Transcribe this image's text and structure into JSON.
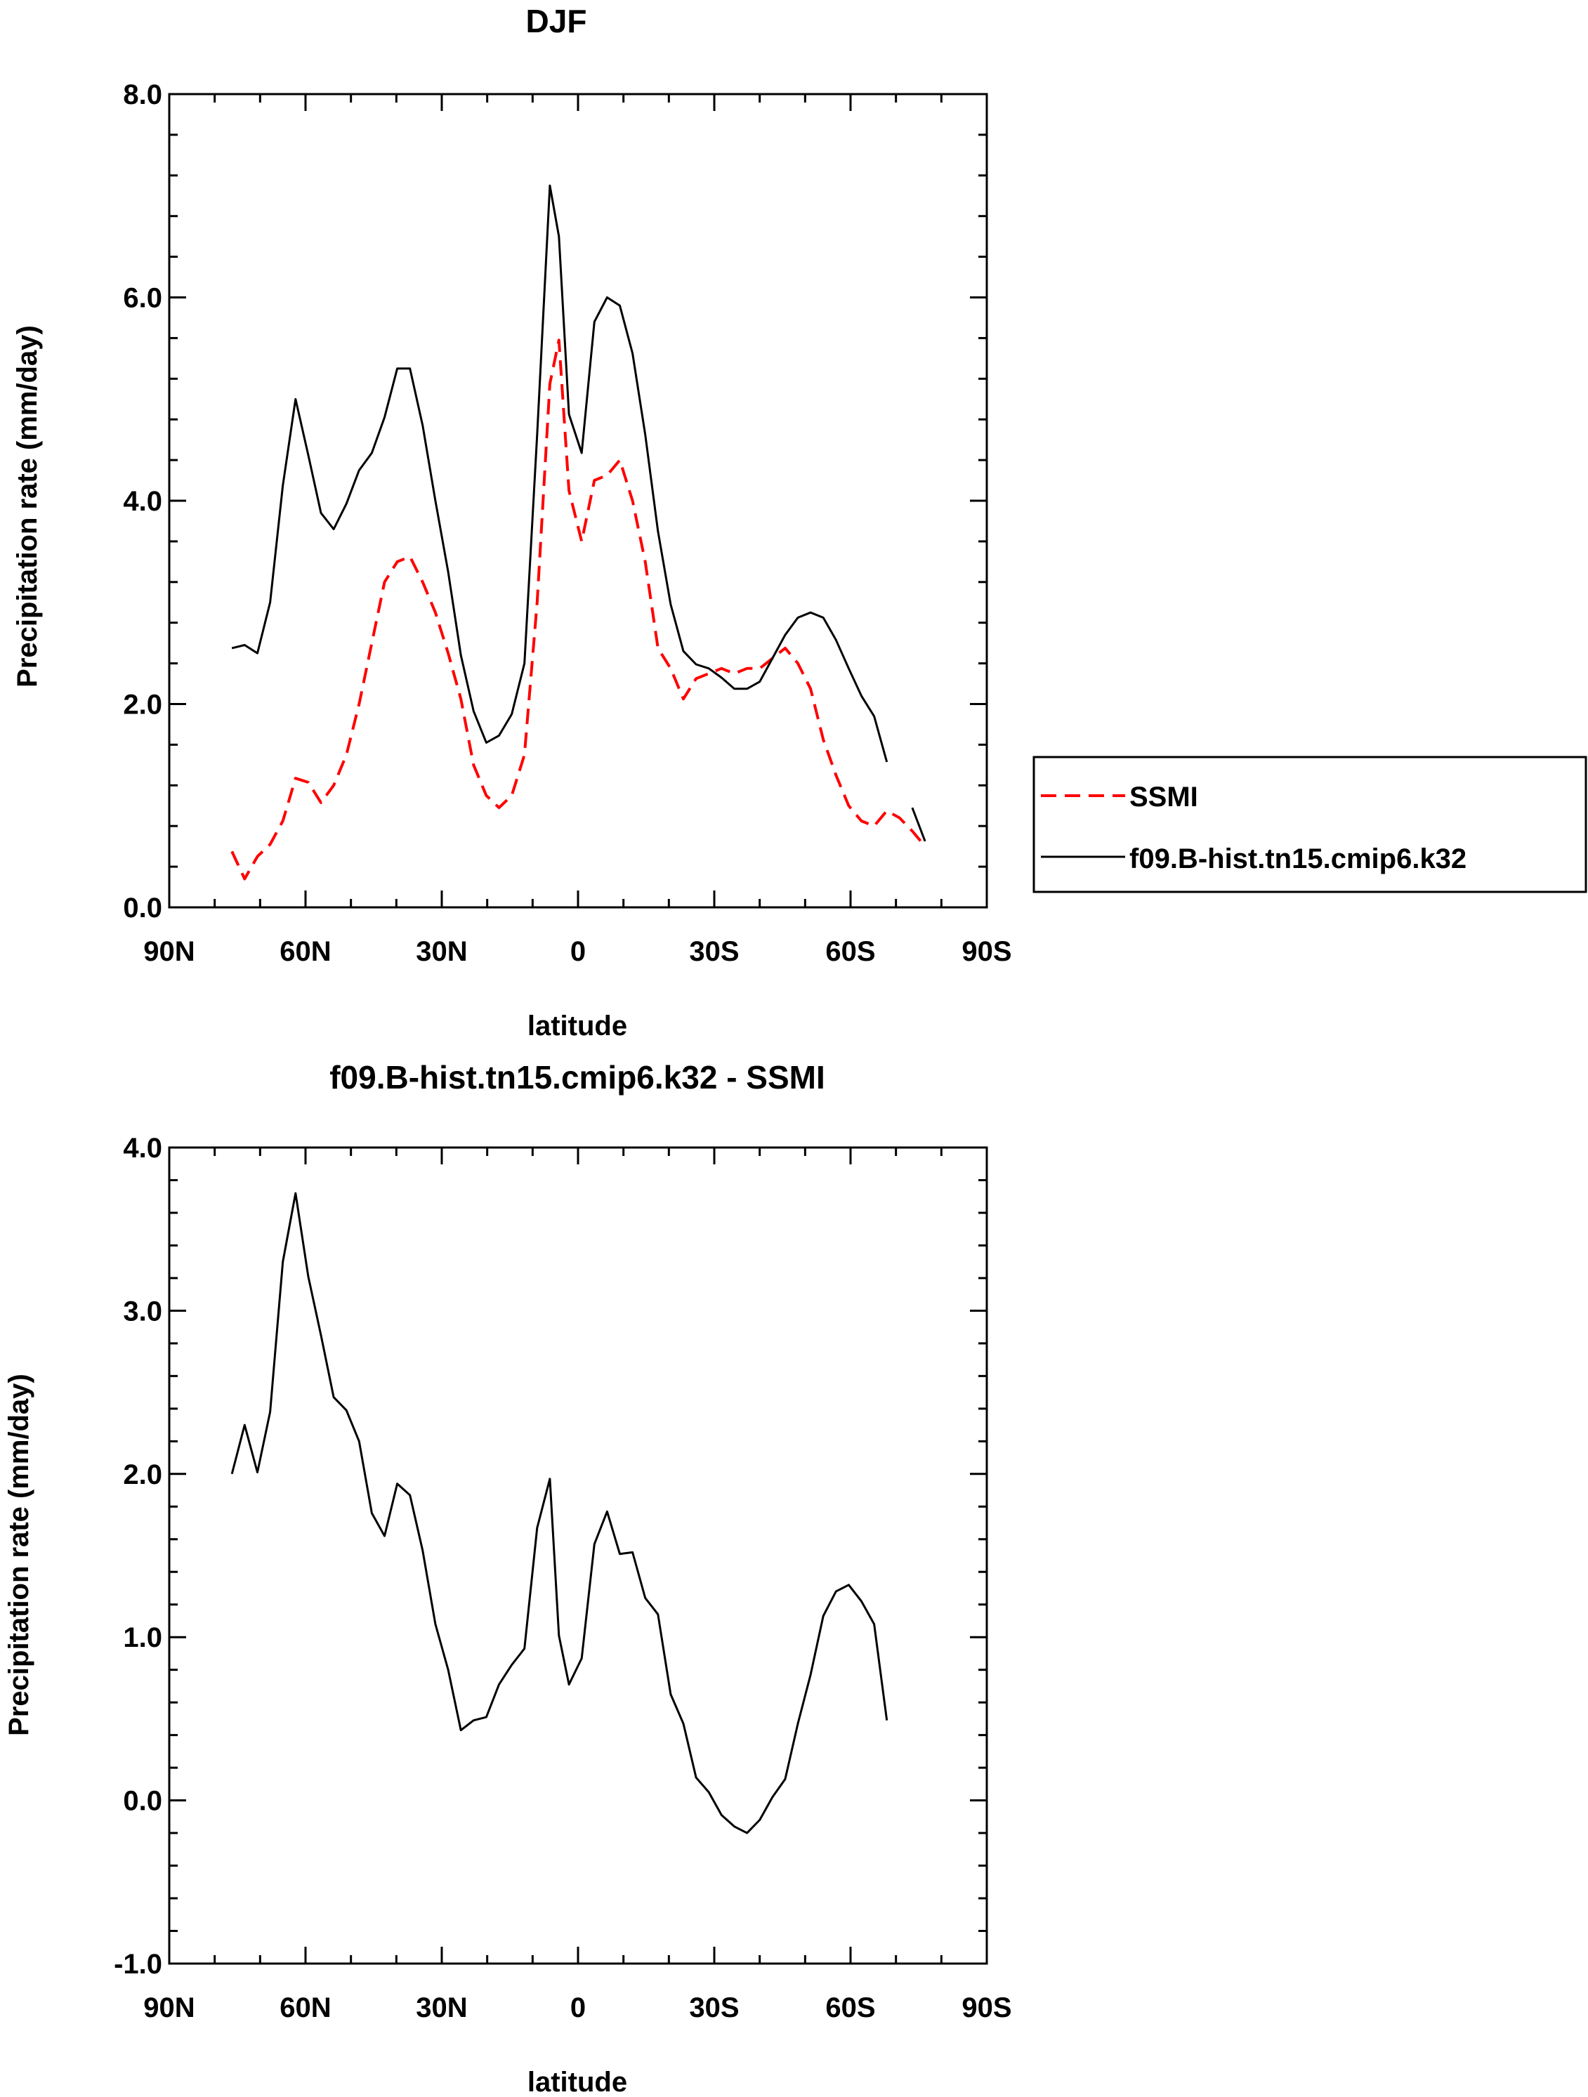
{
  "chart_data": [
    {
      "type": "line",
      "title": "DJF",
      "xlabel": "latitude",
      "ylabel": "Precipitation rate (mm/day)",
      "xlim": [
        -90,
        90
      ],
      "ylim": [
        0,
        8
      ],
      "x_ticks": [
        -90,
        -60,
        -30,
        0,
        30,
        60,
        90
      ],
      "x_tick_labels": [
        "90N",
        "60N",
        "30N",
        "0",
        "30S",
        "60S",
        "90S"
      ],
      "y_ticks": [
        0,
        2,
        4,
        6,
        8
      ],
      "y_tick_labels": [
        "0.0",
        "2.0",
        "4.0",
        "6.0",
        "8.0"
      ],
      "legend_position": "right",
      "series": [
        {
          "name": "SSMI",
          "color": "#ff0000",
          "dash": "dashed",
          "x": [
            -76.2,
            -73.4,
            -70.6,
            -67.8,
            -65.0,
            -62.2,
            -59.4,
            -56.6,
            -53.8,
            -51.0,
            -48.2,
            -45.4,
            -42.6,
            -39.8,
            -37.0,
            -34.2,
            -31.4,
            -28.6,
            -25.8,
            -23.0,
            -20.2,
            -17.4,
            -14.6,
            -11.8,
            -9.0,
            -6.2,
            -4.2,
            -2.0,
            0.8,
            3.6,
            6.4,
            9.2,
            12.0,
            14.8,
            17.6,
            20.4,
            23.2,
            26.0,
            28.8,
            31.6,
            34.4,
            37.2,
            40.0,
            42.8,
            45.6,
            48.4,
            51.2,
            54.0,
            56.8,
            59.6,
            62.4,
            65.2,
            68.0,
            70.8,
            73.6,
            76.4
          ],
          "y": [
            0.55,
            0.28,
            0.5,
            0.62,
            0.85,
            1.27,
            1.23,
            1.03,
            1.2,
            1.5,
            2.0,
            2.6,
            3.2,
            3.4,
            3.45,
            3.2,
            2.9,
            2.5,
            2.05,
            1.4,
            1.1,
            0.98,
            1.1,
            1.5,
            3.0,
            5.15,
            5.58,
            4.1,
            3.6,
            4.2,
            4.25,
            4.4,
            4.0,
            3.4,
            2.55,
            2.35,
            2.05,
            2.25,
            2.3,
            2.35,
            2.3,
            2.35,
            2.35,
            2.45,
            2.55,
            2.4,
            2.15,
            1.65,
            1.3,
            1.0,
            0.85,
            0.8,
            0.95,
            0.88,
            0.75,
            0.6
          ]
        },
        {
          "name": "f09.B-hist.tn15.cmip6.k32",
          "color": "#000000",
          "dash": "solid",
          "x": [
            -76.2,
            -73.4,
            -70.6,
            -67.8,
            -65.0,
            -62.2,
            -59.4,
            -56.6,
            -53.8,
            -51.0,
            -48.2,
            -45.4,
            -42.6,
            -39.8,
            -37.0,
            -34.2,
            -31.4,
            -28.6,
            -25.8,
            -23.0,
            -20.2,
            -17.4,
            -14.6,
            -11.8,
            -9.0,
            -6.2,
            -4.2,
            -2.0,
            0.8,
            3.6,
            6.4,
            9.2,
            12.0,
            14.8,
            17.6,
            20.4,
            23.2,
            26.0,
            28.8,
            31.6,
            34.4,
            37.2,
            40.0,
            42.8,
            45.6,
            48.4,
            51.2,
            54.0,
            56.8,
            59.6,
            62.4,
            65.2,
            68.0,
            null,
            73.6,
            76.4
          ],
          "y": [
            2.55,
            2.58,
            2.5,
            3.0,
            4.15,
            5.0,
            4.45,
            3.88,
            3.72,
            3.97,
            4.3,
            4.47,
            4.82,
            5.3,
            5.3,
            4.74,
            4.0,
            3.3,
            2.48,
            1.93,
            1.62,
            1.69,
            1.9,
            2.4,
            4.65,
            7.1,
            6.6,
            4.85,
            4.47,
            5.76,
            6.0,
            5.92,
            5.45,
            4.65,
            3.7,
            2.98,
            2.52,
            2.39,
            2.35,
            2.26,
            2.15,
            2.15,
            2.22,
            2.45,
            2.68,
            2.85,
            2.9,
            2.85,
            2.63,
            2.35,
            2.08,
            1.88,
            1.43,
            null,
            0.98,
            0.65
          ]
        }
      ]
    },
    {
      "type": "line",
      "title": "f09.B-hist.tn15.cmip6.k32 - SSMI",
      "xlabel": "latitude",
      "ylabel": "Precipitation rate (mm/day)",
      "xlim": [
        -90,
        90
      ],
      "ylim": [
        -1,
        4
      ],
      "x_ticks": [
        -90,
        -60,
        -30,
        0,
        30,
        60,
        90
      ],
      "x_tick_labels": [
        "90N",
        "60N",
        "30N",
        "0",
        "30S",
        "60S",
        "90S"
      ],
      "y_ticks": [
        -1,
        0,
        1,
        2,
        3,
        4
      ],
      "y_tick_labels": [
        "-1.0",
        "0.0",
        "1.0",
        "2.0",
        "3.0",
        "4.0"
      ],
      "series": [
        {
          "color": "#000000",
          "dash": "solid",
          "x": [
            -76.2,
            -73.4,
            -70.6,
            -67.8,
            -65.0,
            -62.2,
            -59.4,
            -56.6,
            -53.8,
            -51.0,
            -48.2,
            -45.4,
            -42.6,
            -39.8,
            -37.0,
            -34.2,
            -31.4,
            -28.6,
            -25.8,
            -23.0,
            -20.2,
            -17.4,
            -14.6,
            -11.8,
            -9.0,
            -6.2,
            -4.2,
            -2.0,
            0.8,
            3.6,
            6.4,
            9.2,
            12.0,
            14.8,
            17.6,
            20.4,
            23.2,
            26.0,
            28.8,
            31.6,
            34.4,
            37.2,
            40.0,
            42.8,
            45.6,
            48.4,
            51.2,
            54.0,
            56.8,
            59.6,
            62.4,
            65.2,
            68.0
          ],
          "y": [
            2.0,
            2.3,
            2.01,
            2.38,
            3.3,
            3.72,
            3.21,
            2.85,
            2.47,
            2.39,
            2.2,
            1.76,
            1.62,
            1.94,
            1.87,
            1.53,
            1.08,
            0.8,
            0.43,
            0.49,
            0.51,
            0.71,
            0.83,
            0.93,
            1.67,
            1.97,
            1.01,
            0.71,
            0.87,
            1.57,
            1.77,
            1.51,
            1.52,
            1.24,
            1.14,
            0.65,
            0.47,
            0.14,
            0.05,
            -0.09,
            -0.16,
            -0.2,
            -0.12,
            0.02,
            0.13,
            0.47,
            0.77,
            1.13,
            1.28,
            1.32,
            1.22,
            1.08,
            0.49
          ]
        }
      ]
    }
  ]
}
